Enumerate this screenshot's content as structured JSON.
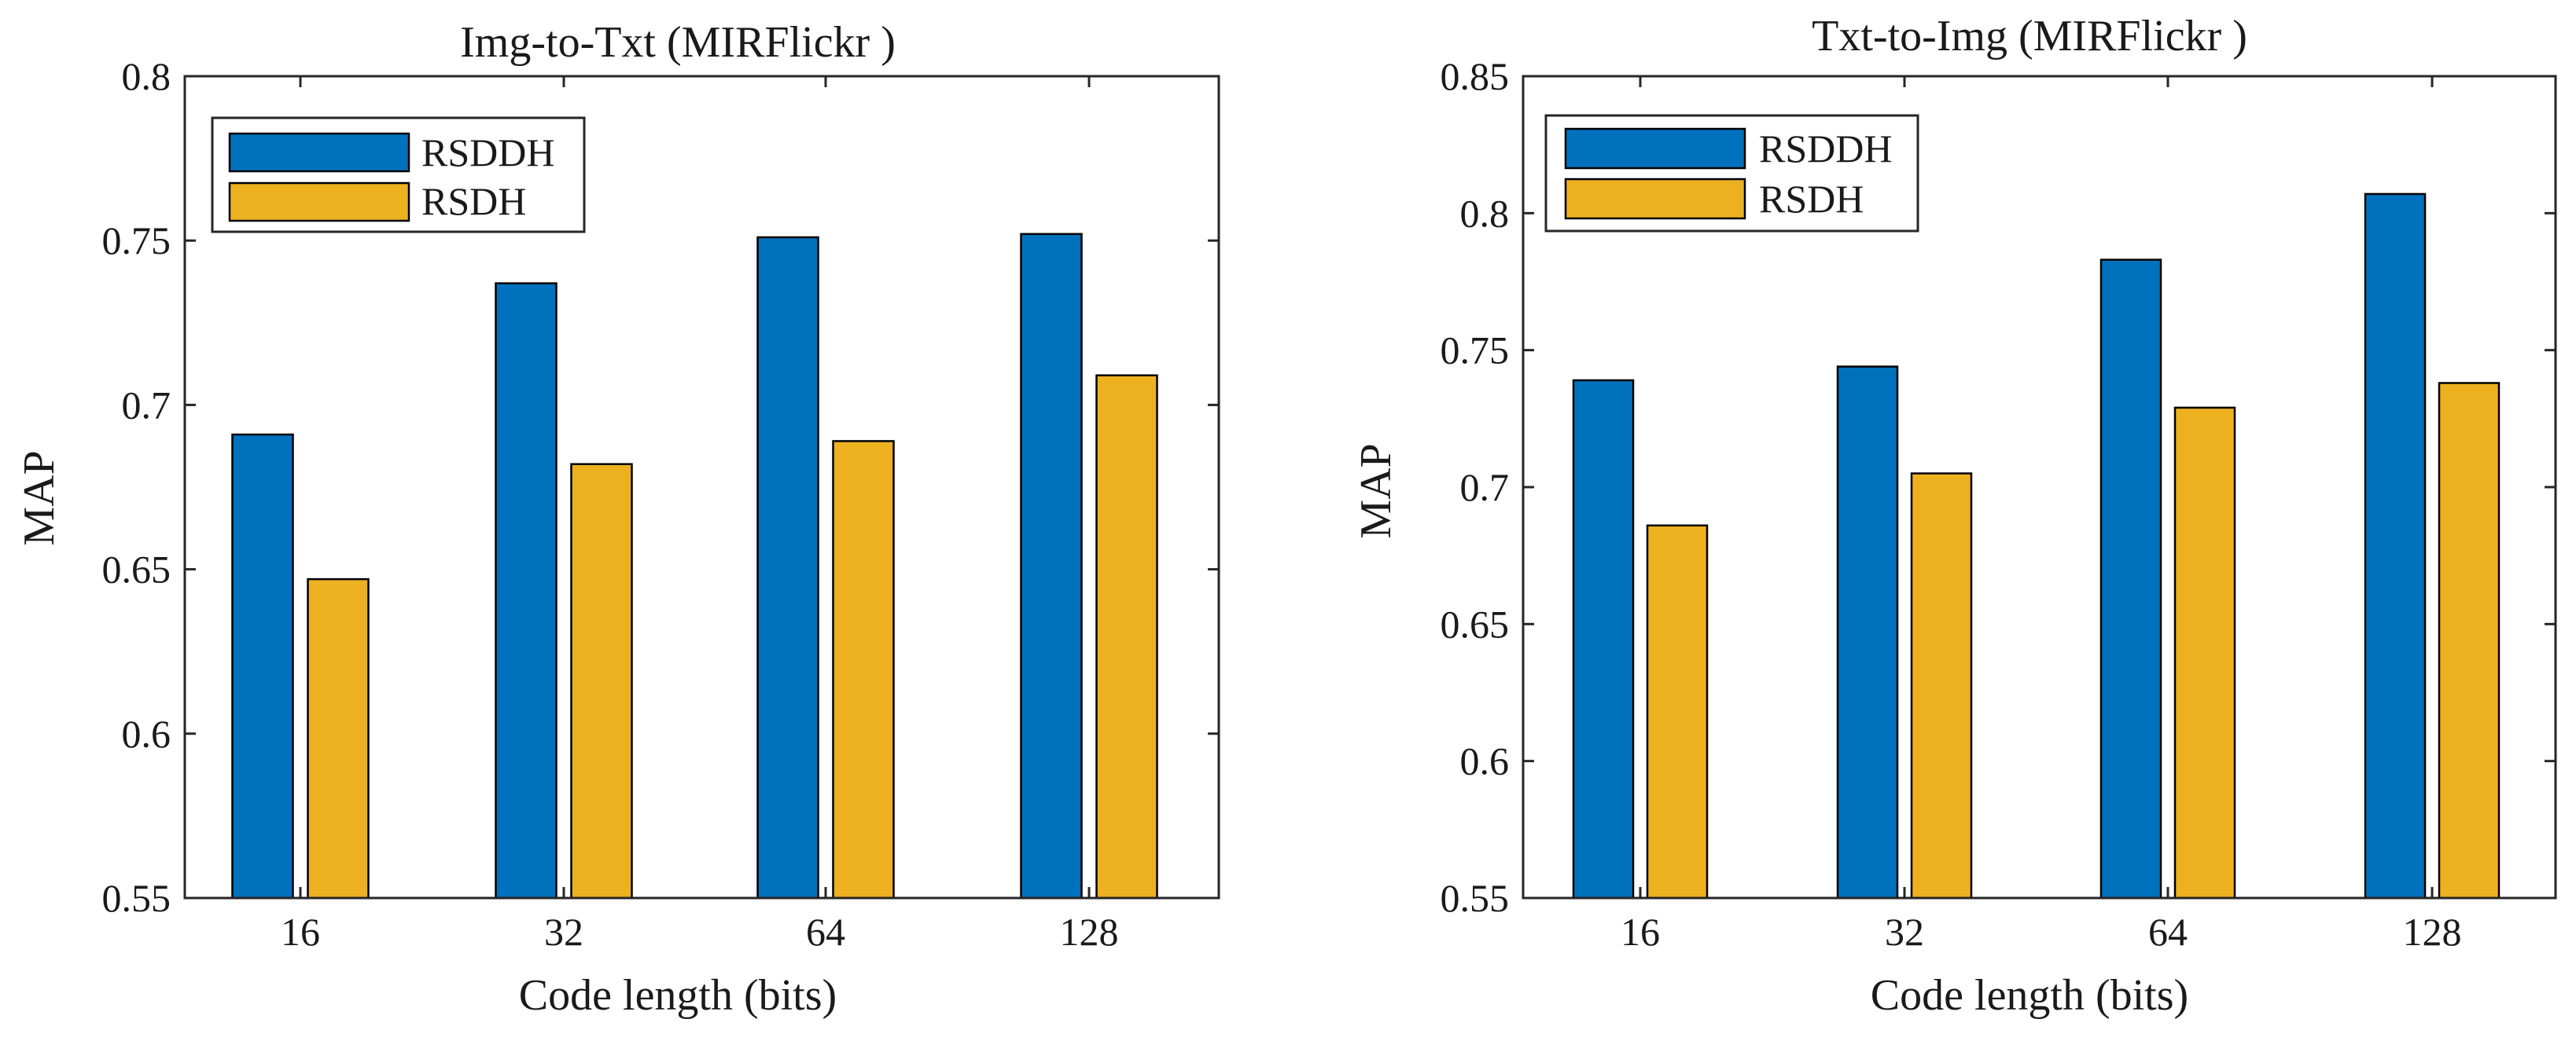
{
  "colors": {
    "RSDDH": "#0072bd",
    "RSDH": "#edb120",
    "axis": "#262626",
    "background": "#ffffff"
  },
  "chart_data": [
    {
      "type": "bar",
      "title": "Img-to-Txt (MIRFlickr )",
      "xlabel": "Code length (bits)",
      "ylabel": "MAP",
      "categories": [
        "16",
        "32",
        "64",
        "128"
      ],
      "series": [
        {
          "name": "RSDDH",
          "values": [
            0.691,
            0.737,
            0.751,
            0.752
          ]
        },
        {
          "name": "RSDH",
          "values": [
            0.647,
            0.682,
            0.689,
            0.709
          ]
        }
      ],
      "ylim": [
        0.55,
        0.8
      ],
      "yticks": [
        0.55,
        0.6,
        0.65,
        0.7,
        0.75,
        0.8
      ],
      "ytick_labels": [
        "0.55",
        "0.6",
        "0.65",
        "0.7",
        "0.75",
        "0.8"
      ],
      "legend": {
        "position": "top-left",
        "entries": [
          "RSDDH",
          "RSDH"
        ]
      },
      "grid": false
    },
    {
      "type": "bar",
      "title": "Txt-to-Img (MIRFlickr )",
      "xlabel": "Code length (bits)",
      "ylabel": "MAP",
      "categories": [
        "16",
        "32",
        "64",
        "128"
      ],
      "series": [
        {
          "name": "RSDDH",
          "values": [
            0.739,
            0.744,
            0.783,
            0.807
          ]
        },
        {
          "name": "RSDH",
          "values": [
            0.686,
            0.705,
            0.729,
            0.738
          ]
        }
      ],
      "ylim": [
        0.55,
        0.85
      ],
      "yticks": [
        0.55,
        0.6,
        0.65,
        0.7,
        0.75,
        0.8,
        0.85
      ],
      "ytick_labels": [
        "0.55",
        "0.6",
        "0.65",
        "0.7",
        "0.75",
        "0.8",
        "0.85"
      ],
      "legend": {
        "position": "top-left",
        "entries": [
          "RSDDH",
          "RSDH"
        ]
      },
      "grid": false
    }
  ]
}
